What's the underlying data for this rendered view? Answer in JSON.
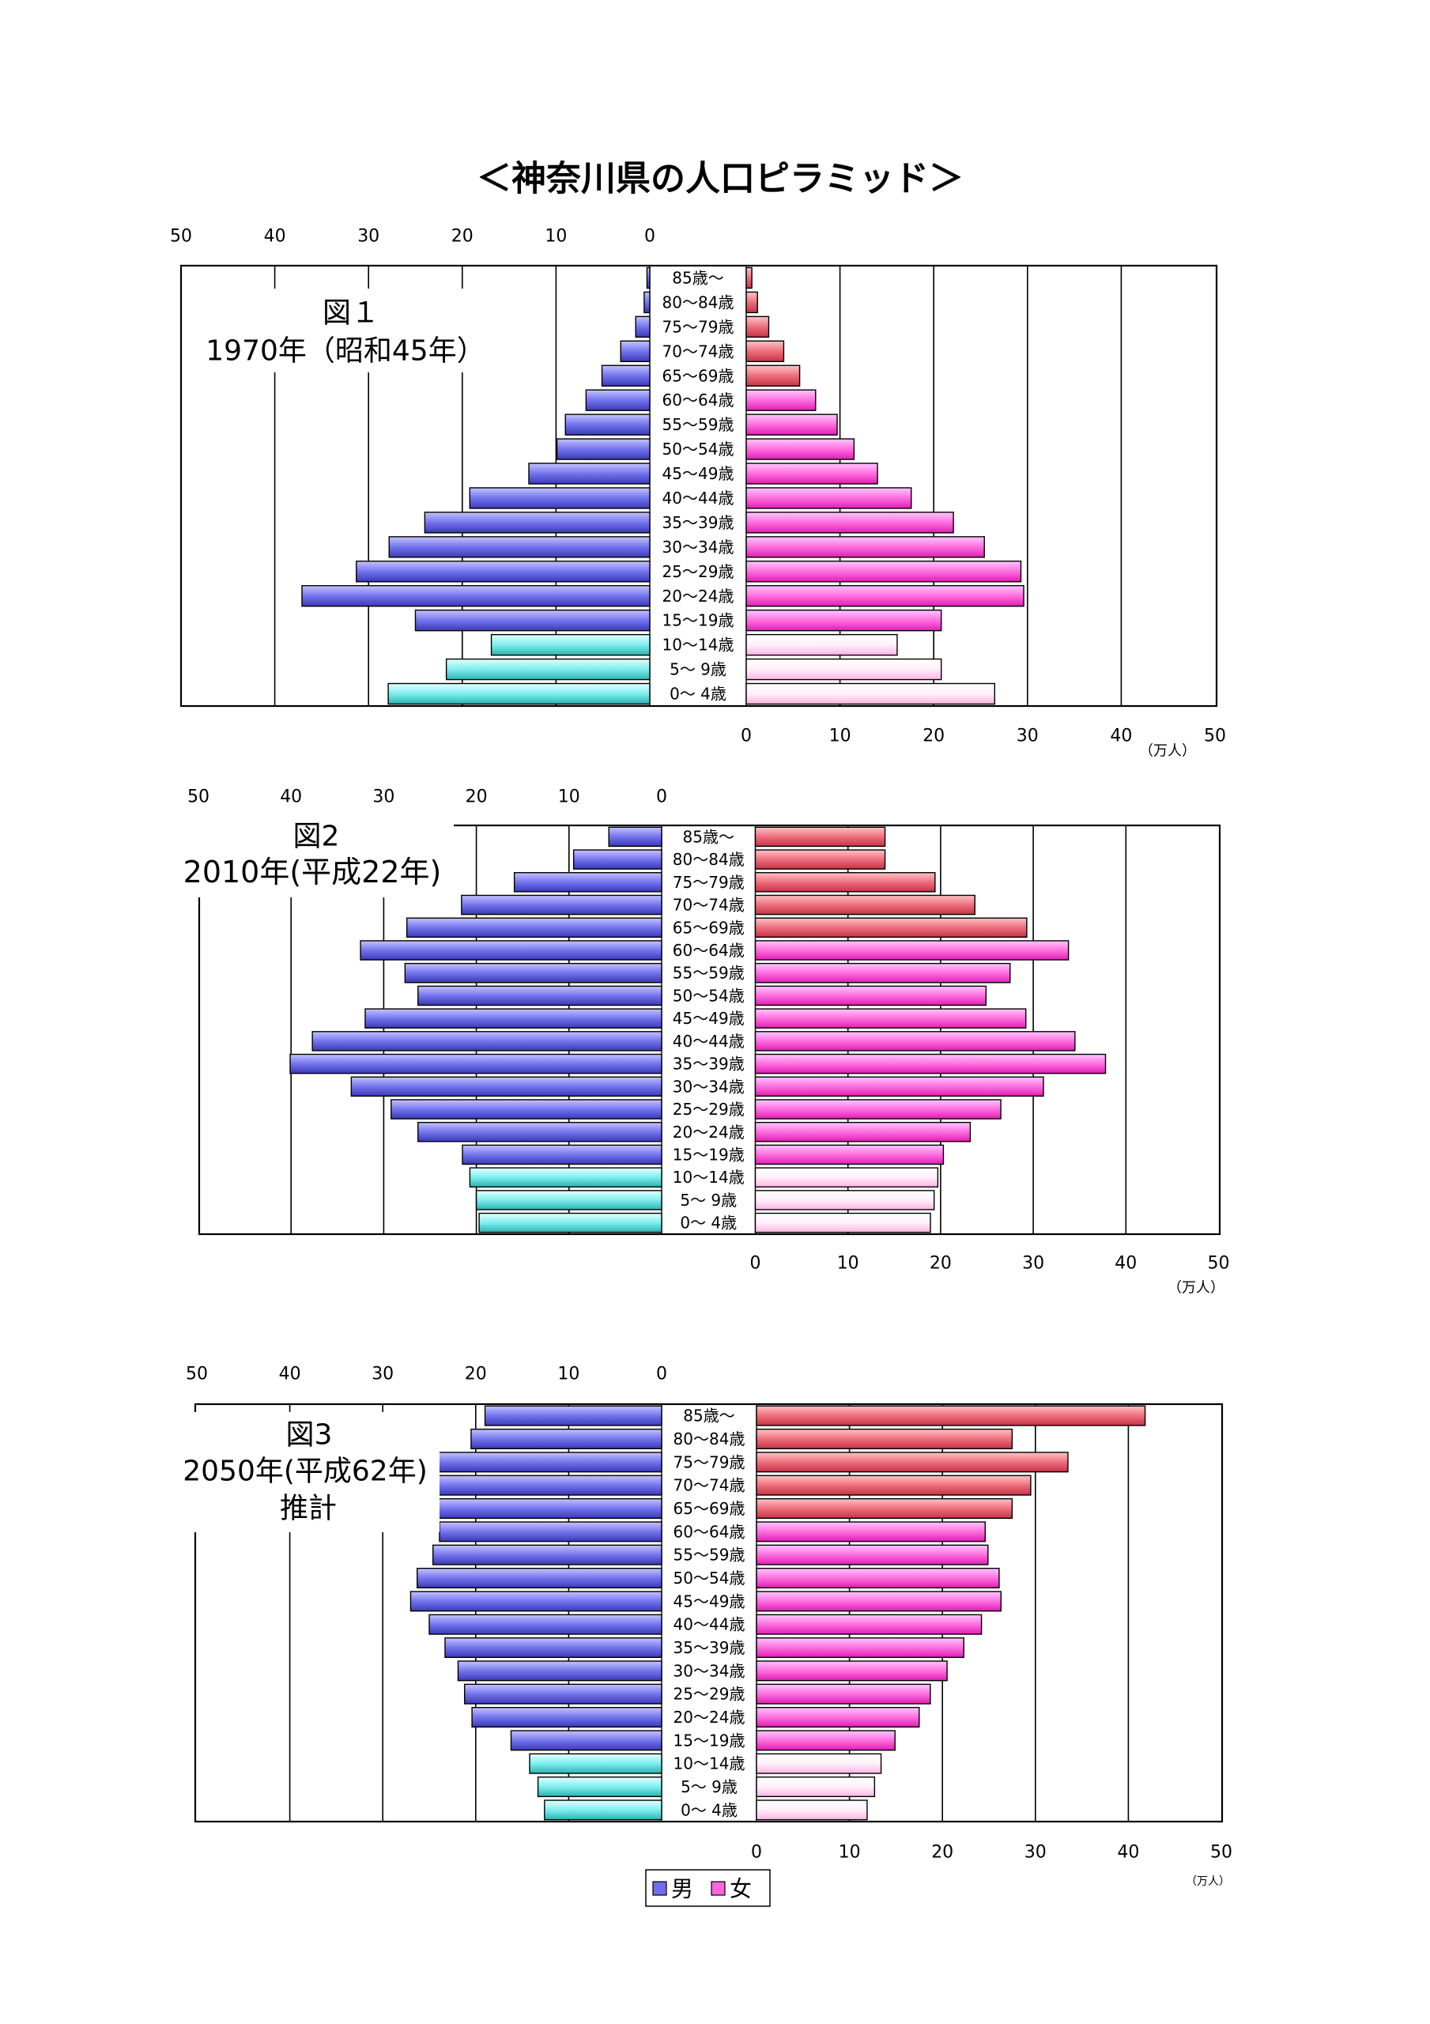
{
  "page": {
    "title": "＜神奈川県の人口ピラミッド＞"
  },
  "colors": {
    "male": [
      "#c4c4ff",
      "#7474ee",
      "#3a3ab6"
    ],
    "male_young": [
      "#e6ffff",
      "#7eeeee",
      "#2cb2b2"
    ],
    "female": [
      "#ffc6ff",
      "#ff6ede",
      "#de1eb4"
    ],
    "female_old": [
      "#ffc4c4",
      "#ee6e7e",
      "#c43446"
    ],
    "female_young": [
      "#ffffff",
      "#fff0fa",
      "#ffb4e4"
    ]
  },
  "legend": {
    "placement": "bottom-center",
    "items": [
      {
        "label": "男",
        "color": "#6e6eee"
      },
      {
        "label": "女",
        "color": "#ff66dc"
      }
    ]
  },
  "chart_data": [
    {
      "type": "bar",
      "orientation": "horizontal",
      "mirrored": true,
      "title": "図１",
      "subtitle": "1970年（昭和45年）",
      "unit": "（万人）",
      "xlim": [
        0,
        50
      ],
      "ticks": [
        0,
        10,
        20,
        30,
        40,
        50
      ],
      "grid": true,
      "categories": [
        "85歳～",
        "80～84歳",
        "75～79歳",
        "70～74歳",
        "65～69歳",
        "60～64歳",
        "55～59歳",
        "50～54歳",
        "45～49歳",
        "40～44歳",
        "35～39歳",
        "30～34歳",
        "25～29歳",
        "20～24歳",
        "15～19歳",
        "10～14歳",
        "5～ 9歳",
        "0～ 4歳"
      ],
      "series": [
        {
          "name": "男",
          "values": [
            0.3,
            0.6,
            1.5,
            3.1,
            5.1,
            6.8,
            9.0,
            9.9,
            12.9,
            19.2,
            24.0,
            27.8,
            31.3,
            37.1,
            25.0,
            16.9,
            21.7,
            27.9
          ]
        },
        {
          "name": "女",
          "values": [
            0.6,
            1.2,
            2.4,
            4.0,
            5.7,
            7.4,
            9.7,
            11.5,
            14.0,
            17.6,
            22.1,
            25.4,
            29.3,
            29.6,
            20.8,
            16.1,
            20.8,
            26.5
          ]
        }
      ]
    },
    {
      "type": "bar",
      "orientation": "horizontal",
      "mirrored": true,
      "title": "図2",
      "subtitle": "2010年(平成22年)",
      "unit": "（万人）",
      "xlim": [
        0,
        50
      ],
      "ticks": [
        0,
        10,
        20,
        30,
        40,
        50
      ],
      "grid": true,
      "categories": [
        "85歳～",
        "80～84歳",
        "75～79歳",
        "70～74歳",
        "65～69歳",
        "60～64歳",
        "55～59歳",
        "50～54歳",
        "45～49歳",
        "40～44歳",
        "35～39歳",
        "30～34歳",
        "25～29歳",
        "20～24歳",
        "15～19歳",
        "10～14歳",
        "5～ 9歳",
        "0～ 4歳"
      ],
      "series": [
        {
          "name": "男",
          "values": [
            5.7,
            9.5,
            15.9,
            21.6,
            27.5,
            32.5,
            27.7,
            26.3,
            32.0,
            37.7,
            40.1,
            33.5,
            29.2,
            26.3,
            21.5,
            20.7,
            20.0,
            19.7
          ]
        },
        {
          "name": "女",
          "values": [
            14.0,
            14.0,
            19.4,
            23.7,
            29.3,
            33.8,
            27.5,
            24.9,
            29.2,
            34.5,
            37.8,
            31.1,
            26.5,
            23.2,
            20.3,
            19.7,
            19.3,
            18.9
          ]
        }
      ]
    },
    {
      "type": "bar",
      "orientation": "horizontal",
      "mirrored": true,
      "title": "図3",
      "subtitle": "2050年(平成62年)",
      "note": "推計",
      "unit": "（万人）",
      "xlim": [
        0,
        50
      ],
      "ticks": [
        0,
        10,
        20,
        30,
        40,
        50
      ],
      "grid": true,
      "categories": [
        "85歳～",
        "80～84歳",
        "75～79歳",
        "70～74歳",
        "65～69歳",
        "60～64歳",
        "55～59歳",
        "50～54歳",
        "45～49歳",
        "40～44歳",
        "35～39歳",
        "30～34歳",
        "25～29歳",
        "20～24歳",
        "15～19歳",
        "10～14歳",
        "5～ 9歳",
        "0～ 4歳"
      ],
      "series": [
        {
          "name": "男",
          "values": [
            19.0,
            20.5,
            24.3,
            24.3,
            24.3,
            23.9,
            24.6,
            26.3,
            27.0,
            25.0,
            23.3,
            21.9,
            21.2,
            20.4,
            16.2,
            14.2,
            13.3,
            12.6
          ]
        },
        {
          "name": "女",
          "values": [
            41.8,
            27.5,
            33.5,
            29.5,
            27.5,
            24.6,
            24.9,
            26.1,
            26.3,
            24.2,
            22.3,
            20.5,
            18.7,
            17.5,
            14.9,
            13.4,
            12.7,
            11.9
          ]
        }
      ]
    }
  ]
}
